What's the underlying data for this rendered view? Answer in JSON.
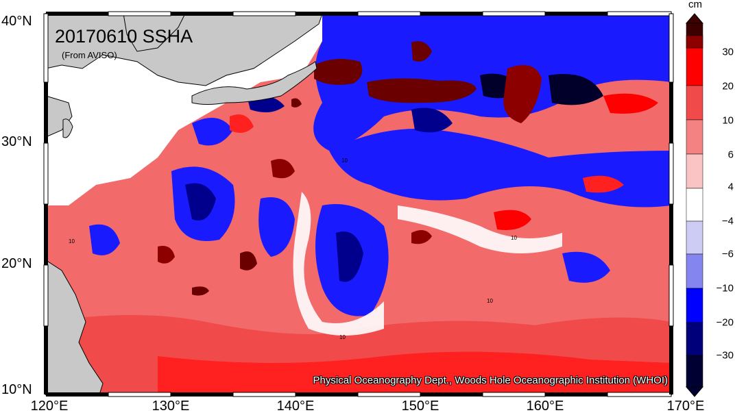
{
  "map": {
    "title": "20170610 SSHA",
    "subtitle": "(From AVISO)",
    "credit": "Physical Oceanography Dept., Woods Hole Oceanographic Institution (WHOI)",
    "lat_labels": [
      "40°N",
      "30°N",
      "20°N",
      "10°N"
    ],
    "lon_labels": [
      "120°E",
      "130°E",
      "140°E",
      "150°E",
      "160°E",
      "170°E"
    ],
    "contour_label": "10"
  },
  "colorbar": {
    "unit": "cm",
    "tick_labels": [
      "30",
      "20",
      "10",
      "6",
      "4",
      "−4",
      "−6",
      "−10",
      "−20",
      "−30"
    ],
    "colors": [
      "#3d0000",
      "#8c0000",
      "#ff0000",
      "#f04a4a",
      "#f58282",
      "#fbc4c4",
      "#ffffff",
      "#ccccf5",
      "#8585f0",
      "#0000ff",
      "#00007a",
      "#000033"
    ]
  },
  "palette": {
    "land": "#c8c8c8",
    "strong_pos": "#6a0000",
    "pos_mid": "#ff2020",
    "pos": "#f26a6a",
    "pos_light": "#f8a6a6",
    "pos_faint": "#fcd2d2",
    "neutral": "#ffffff",
    "neg_faint": "#d5d5f7",
    "neg_light": "#8f8ff2",
    "neg": "#1a1aff",
    "neg_dark": "#00008c",
    "neg_deep": "#00002a"
  }
}
